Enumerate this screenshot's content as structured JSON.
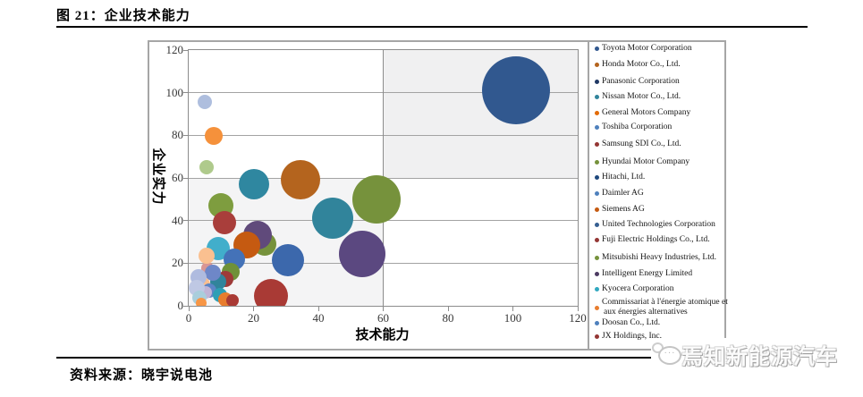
{
  "document": {
    "title": "图 21：企业技术能力",
    "source": "资料来源：晓宇说电池",
    "logo_text": "焉知新能源汽车",
    "logo_icon": "speech-bubble-ellipsis-icon",
    "logo_dots": "···"
  },
  "chart_data": {
    "type": "scatter",
    "subtype": "bubble",
    "title": "",
    "xlabel": "技术能力",
    "ylabel": "企业实力",
    "xlim": [
      0,
      120
    ],
    "ylim": [
      0,
      120
    ],
    "x_ticks": [
      0,
      20,
      40,
      60,
      80,
      100,
      120
    ],
    "y_ticks": [
      0,
      20,
      40,
      60,
      80,
      100,
      120
    ],
    "grid": "horizontal-only",
    "legend_position": "right",
    "quadrant_divider": {
      "x": 60,
      "y": 60
    },
    "quadrant_fill": {
      "top_left": "#FFFFFF",
      "top_right": "#F0F0F1",
      "bottom_left": "#F4F4F5",
      "bottom_right": "#FFFFFF"
    },
    "legend_companies": [
      {
        "name": "Toyota Motor Corporation",
        "color": "#31588F"
      },
      {
        "name": "Honda Motor Co., Ltd.",
        "color": "#B4641E"
      },
      {
        "name": "Panasonic Corporation",
        "color": "#203864"
      },
      {
        "name": "Nissan Motor Co., Ltd.",
        "color": "#31849B"
      },
      {
        "name": "General Motors Company",
        "color": "#E36C09"
      },
      {
        "name": "Toshiba Corporation",
        "color": "#4F81BD"
      },
      {
        "name": "Samsung SDI Co., Ltd.",
        "color": "#943634"
      },
      {
        "name": "Hyundai Motor Company",
        "color": "#76923C"
      },
      {
        "name": "Hitachi, Ltd.",
        "color": "#1F497D"
      },
      {
        "name": "Daimler AG",
        "color": "#4F81BD"
      },
      {
        "name": "Siemens AG",
        "color": "#C55A11"
      },
      {
        "name": "United Technologies Corporation",
        "color": "#365F91"
      },
      {
        "name": "Fuji Electric Holdings Co., Ltd.",
        "color": "#943634"
      },
      {
        "name": "Mitsubishi Heavy Industries, Ltd.",
        "color": "#76923C"
      },
      {
        "name": "Intelligent Energy Limited",
        "color": "#4D3B62"
      },
      {
        "name": "Kyocera Corporation",
        "color": "#31A8C0"
      },
      {
        "name": "Commissariat à l'énergie atomique et",
        "name_line2": "aux énergies alternatives",
        "color": "#E87D2E"
      },
      {
        "name": "Doosan Co., Ltd.",
        "color": "#4F81BD"
      },
      {
        "name": "JX Holdings, Inc.",
        "color": "#943634"
      }
    ],
    "bubbles": [
      {
        "x": 5.0,
        "y": 95.5,
        "r": 8,
        "color": "#AEBEDE"
      },
      {
        "x": 7.7,
        "y": 79.7,
        "r": 10,
        "color": "#F5913B"
      },
      {
        "x": 5.5,
        "y": 65.0,
        "r": 8,
        "color": "#AFCA8C"
      },
      {
        "x": 101,
        "y": 101,
        "r": 38,
        "color": "#31588F"
      },
      {
        "x": 20,
        "y": 57,
        "r": 17,
        "color": "#2F87A0"
      },
      {
        "x": 34.5,
        "y": 59,
        "r": 22,
        "color": "#B4641E"
      },
      {
        "x": 58,
        "y": 50,
        "r": 27,
        "color": "#76923C"
      },
      {
        "x": 44.5,
        "y": 41,
        "r": 23,
        "color": "#31849B"
      },
      {
        "x": 10,
        "y": 47,
        "r": 14,
        "color": "#7E9D3F"
      },
      {
        "x": 11,
        "y": 39,
        "r": 13,
        "color": "#A93E3B"
      },
      {
        "x": 23.5,
        "y": 29,
        "r": 13,
        "color": "#76923C"
      },
      {
        "x": 53.5,
        "y": 24.5,
        "r": 26,
        "color": "#5B4880"
      },
      {
        "x": 21.3,
        "y": 33,
        "r": 16,
        "color": "#604A7B"
      },
      {
        "x": 18,
        "y": 28.5,
        "r": 15,
        "color": "#C55A11"
      },
      {
        "x": 30.5,
        "y": 21.5,
        "r": 18,
        "color": "#3C68AC"
      },
      {
        "x": 25.5,
        "y": 4.5,
        "r": 19,
        "color": "#A93A35"
      },
      {
        "x": 5.8,
        "y": 17.6,
        "r": 7,
        "color": "#D99694"
      },
      {
        "x": 9,
        "y": 27,
        "r": 13,
        "color": "#41AECB"
      },
      {
        "x": 5.5,
        "y": 23.5,
        "r": 9,
        "color": "#FAC090"
      },
      {
        "x": 14,
        "y": 22,
        "r": 12,
        "color": "#4472B8"
      },
      {
        "x": 13,
        "y": 16,
        "r": 10,
        "color": "#6F9138"
      },
      {
        "x": 11.3,
        "y": 12.6,
        "r": 9,
        "color": "#9E3A38"
      },
      {
        "x": 9.1,
        "y": 11.3,
        "r": 9,
        "color": "#31849B"
      },
      {
        "x": 7.4,
        "y": 15.5,
        "r": 9,
        "color": "#6E87C8"
      },
      {
        "x": 4.4,
        "y": 10.1,
        "r": 8,
        "color": "#F9BE8F"
      },
      {
        "x": 3.0,
        "y": 13.4,
        "r": 9,
        "color": "#AFBBDF"
      },
      {
        "x": 6.3,
        "y": 7.1,
        "r": 8,
        "color": "#5C85C6"
      },
      {
        "x": 5.2,
        "y": 6.3,
        "r": 7,
        "color": "#C0B4D6"
      },
      {
        "x": 9.7,
        "y": 5.0,
        "r": 8,
        "color": "#2E9FB5"
      },
      {
        "x": 2.5,
        "y": 8.4,
        "r": 9,
        "color": "#BFC8E4"
      },
      {
        "x": 11.3,
        "y": 2.9,
        "r": 8,
        "color": "#E87D2E"
      },
      {
        "x": 13.5,
        "y": 2.5,
        "r": 7,
        "color": "#A93A35"
      },
      {
        "x": 3.3,
        "y": 3.8,
        "r": 8,
        "color": "#A9CEDC"
      },
      {
        "x": 3.9,
        "y": 1.3,
        "r": 6,
        "color": "#F79646"
      }
    ]
  },
  "colors": {
    "grid_line": "#A3A3A3",
    "axis_frame": "#8C8C8C",
    "chart_border": "#A6A6A6",
    "tick_text": "#383838"
  }
}
